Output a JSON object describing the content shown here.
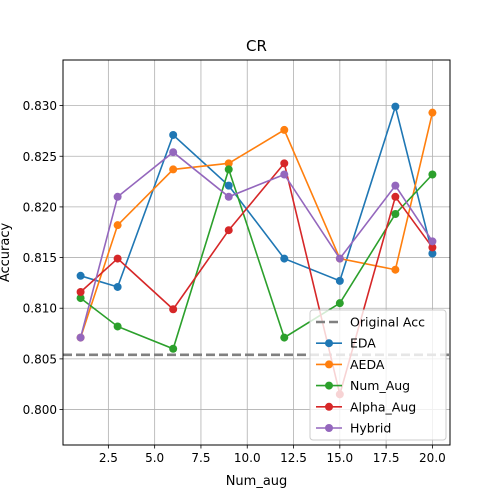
{
  "chart_data": {
    "type": "line",
    "title": "CR",
    "xlabel": "Num_aug",
    "ylabel": "Accuracy",
    "xlim": [
      0.05,
      20.95
    ],
    "ylim": [
      0.7965,
      0.8345
    ],
    "xticks": [
      2.5,
      5.0,
      7.5,
      10.0,
      12.5,
      15.0,
      17.5,
      20.0
    ],
    "yticks": [
      0.8,
      0.805,
      0.81,
      0.815,
      0.82,
      0.825,
      0.83
    ],
    "grid": true,
    "legend_position": "lower-right",
    "x": [
      1,
      3,
      6,
      9,
      12,
      15,
      18,
      20
    ],
    "reference_line": {
      "name": "Original Acc",
      "y": 0.8054,
      "color": "#808080"
    },
    "series": [
      {
        "name": "EDA",
        "color": "#1f77b4",
        "values": [
          0.8132,
          0.8121,
          0.8271,
          0.8221,
          0.8149,
          0.8127,
          0.8299,
          0.8154
        ]
      },
      {
        "name": "AEDA",
        "color": "#ff7f0e",
        "values": [
          0.8071,
          0.8182,
          0.8237,
          0.8243,
          0.8276,
          0.8149,
          0.8138,
          0.8293
        ]
      },
      {
        "name": "Num_Aug",
        "color": "#2ca02c",
        "values": [
          0.811,
          0.8082,
          0.806,
          0.8237,
          0.8071,
          0.8105,
          0.8193,
          0.8232
        ]
      },
      {
        "name": "Alpha_Aug",
        "color": "#d62728",
        "values": [
          0.8116,
          0.8149,
          0.8099,
          0.8177,
          0.8243,
          0.8015,
          0.821,
          0.816
        ]
      },
      {
        "name": "Hybrid",
        "color": "#9467bd",
        "values": [
          0.8071,
          0.821,
          0.8254,
          0.821,
          0.8232,
          0.8149,
          0.8221,
          0.8166
        ]
      }
    ]
  }
}
